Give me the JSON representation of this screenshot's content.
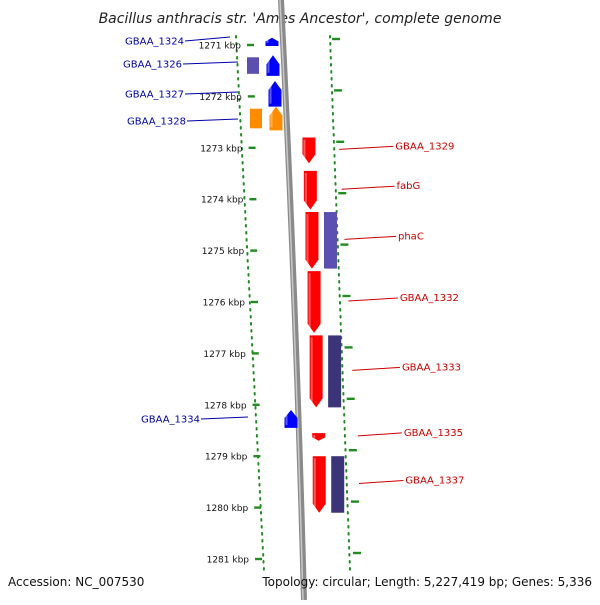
{
  "title": "Bacillus anthracis str. 'Ames Ancestor', complete genome",
  "footer": {
    "accession": "Accession: NC_007530",
    "topology": "Topology: circular; Length: 5,227,419 bp; Genes: 5,336"
  },
  "colors": {
    "backbone": "#8a8a8a",
    "forward_gene": "#0000ff",
    "reverse_gene": "#ff0000",
    "other_gene": "#ff8c00",
    "forward_label": "#0000aa",
    "reverse_label": "#cc0000",
    "feature_block": "#5b4fb0",
    "feature_block_dark": "#3c3478",
    "dot_track": "#228b22"
  },
  "ticks": [
    {
      "kbp": 1271,
      "label": "1271 kbp"
    },
    {
      "kbp": 1272,
      "label": "1272 kbp"
    },
    {
      "kbp": 1273,
      "label": "1273 kbp"
    },
    {
      "kbp": 1274,
      "label": "1274 kbp"
    },
    {
      "kbp": 1275,
      "label": "1275 kbp"
    },
    {
      "kbp": 1276,
      "label": "1276 kbp"
    },
    {
      "kbp": 1277,
      "label": "1277 kbp"
    },
    {
      "kbp": 1278,
      "label": "1278 kbp"
    },
    {
      "kbp": 1279,
      "label": "1279 kbp"
    },
    {
      "kbp": 1280,
      "label": "1280 kbp"
    },
    {
      "kbp": 1281,
      "label": "1281 kbp"
    }
  ],
  "genes": [
    {
      "name": "GBAA_1324",
      "strand": "+",
      "start_kbp": 1270.86,
      "end_kbp": 1271.02
    },
    {
      "name": "GBAA_1326",
      "strand": "+",
      "start_kbp": 1271.2,
      "end_kbp": 1271.6
    },
    {
      "name": "GBAA_1327",
      "strand": "+",
      "start_kbp": 1271.7,
      "end_kbp": 1272.2
    },
    {
      "name": "GBAA_1328",
      "strand": "+",
      "start_kbp": 1272.2,
      "end_kbp": 1272.66,
      "kind": "other"
    },
    {
      "name": "GBAA_1329",
      "strand": "-",
      "start_kbp": 1272.8,
      "end_kbp": 1273.3
    },
    {
      "name": "fabG",
      "strand": "-",
      "start_kbp": 1273.45,
      "end_kbp": 1274.2
    },
    {
      "name": "phaC",
      "strand": "-",
      "start_kbp": 1274.25,
      "end_kbp": 1275.35
    },
    {
      "name": "GBAA_1332",
      "strand": "-",
      "start_kbp": 1275.4,
      "end_kbp": 1276.6
    },
    {
      "name": "GBAA_1333",
      "strand": "-",
      "start_kbp": 1276.65,
      "end_kbp": 1278.05
    },
    {
      "name": "GBAA_1334",
      "strand": "+",
      "start_kbp": 1278.1,
      "end_kbp": 1278.45
    },
    {
      "name": "GBAA_1335",
      "strand": "-",
      "start_kbp": 1278.55,
      "end_kbp": 1278.7
    },
    {
      "name": "GBAA_1337",
      "strand": "-",
      "start_kbp": 1279.0,
      "end_kbp": 1280.1
    }
  ]
}
